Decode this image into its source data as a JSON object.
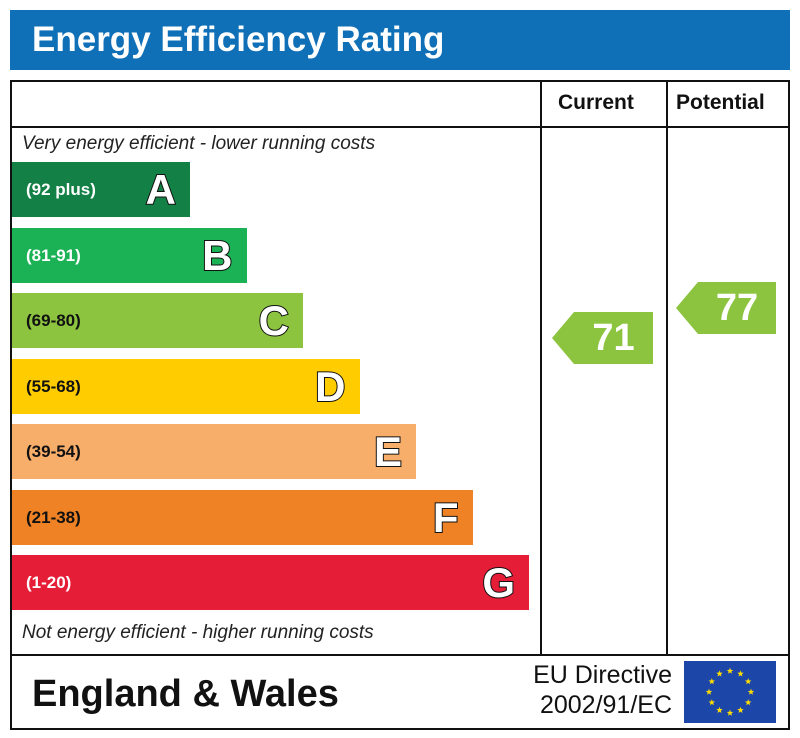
{
  "title": "Energy Efficiency Rating",
  "columns": {
    "current": "Current",
    "potential": "Potential"
  },
  "captions": {
    "top": "Very energy efficient - lower running costs",
    "bottom": "Not energy efficient - higher running costs"
  },
  "colors": {
    "header": "#0f6fb7",
    "arrow": "#8cc43f",
    "flag": "#1c47a8",
    "stars": "#ffdd00"
  },
  "chart_data": {
    "type": "table",
    "bands": [
      {
        "letter": "A",
        "range": "(92 plus)",
        "color": "#138045",
        "text_color": "#ffffff"
      },
      {
        "letter": "B",
        "range": "(81-91)",
        "color": "#1bb255",
        "text_color": "#ffffff"
      },
      {
        "letter": "C",
        "range": "(69-80)",
        "color": "#8cc43f",
        "text_color": "#111111"
      },
      {
        "letter": "D",
        "range": "(55-68)",
        "color": "#ffcc00",
        "text_color": "#111111"
      },
      {
        "letter": "E",
        "range": "(39-54)",
        "color": "#f7ae6b",
        "text_color": "#111111"
      },
      {
        "letter": "F",
        "range": "(21-38)",
        "color": "#ef8224",
        "text_color": "#111111"
      },
      {
        "letter": "G",
        "range": "(1-20)",
        "color": "#e51d37",
        "text_color": "#ffffff"
      }
    ],
    "current": 71,
    "potential": 77
  },
  "footer": {
    "region": "England & Wales",
    "directive_line1": "EU Directive",
    "directive_line2": "2002/91/EC",
    "flag_icon": "eu-flag-icon"
  }
}
